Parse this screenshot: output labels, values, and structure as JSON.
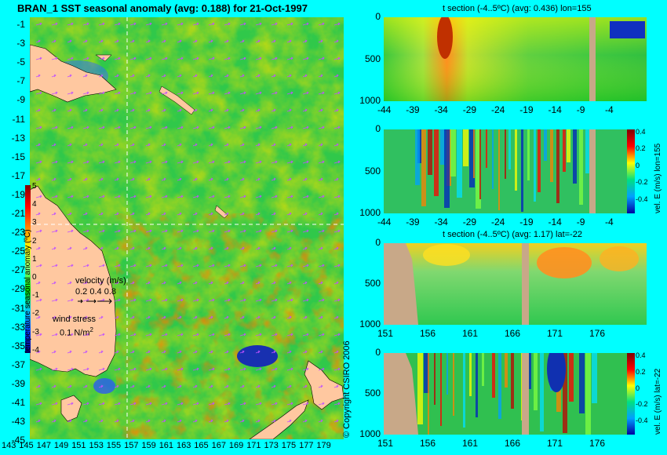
{
  "map": {
    "title": "BRAN_1 SST seasonal anomaly (avg: 0.188) for 21-Oct-1997",
    "lat_labels": [
      "-1",
      "-3",
      "-5",
      "-7",
      "-9",
      "-11",
      "-13",
      "-15",
      "-17",
      "-19",
      "-21",
      "-23",
      "-25",
      "-27",
      "-29",
      "-31",
      "-33",
      "-35",
      "-37",
      "-39",
      "-41",
      "-43",
      "-45"
    ],
    "lon_labels": [
      "143",
      "145",
      "147",
      "149",
      "151",
      "153",
      "155",
      "157",
      "159",
      "161",
      "163",
      "165",
      "167",
      "169",
      "171",
      "173",
      "175",
      "177",
      "179"
    ],
    "colorbar_ticks": [
      "5",
      "4",
      "3",
      "2",
      "1",
      "0",
      "-1",
      "-2",
      "-3",
      "-4"
    ],
    "colorbar_label": "temperature seasonal anomaly (ºC)",
    "velocity_label": "velocity (m/s)",
    "velocity_values": "0.2 0.4 0.8",
    "wind_label": "wind stress",
    "wind_value": "0.1 N/m",
    "wind_exp": "2",
    "copyright": "© Copyright CSIRO 2006"
  },
  "panels": [
    {
      "title": "t section (-4..5ºC) (avg: 0.436) lon=155",
      "y_ticks": [
        "0",
        "500",
        "1000"
      ],
      "x_ticks": [
        "-44",
        "-39",
        "-34",
        "-29",
        "-24",
        "-19",
        "-14",
        "-9",
        "-4"
      ]
    },
    {
      "title": "",
      "y_ticks": [
        "0",
        "500",
        "1000"
      ],
      "x_ticks": [
        "-44",
        "-39",
        "-34",
        "-29",
        "-24",
        "-19",
        "-14",
        "-9",
        "-4"
      ],
      "colorbar_ticks": [
        "0.4",
        "0.2",
        "0",
        "-0.2",
        "-0.4"
      ],
      "side_label": "vel. E (m/s) lon=155"
    },
    {
      "title": "t section (-4..5ºC) (avg: 1.17) lat=-22",
      "y_ticks": [
        "0",
        "500",
        "1000"
      ],
      "x_ticks": [
        "151",
        "156",
        "161",
        "166",
        "171",
        "176"
      ]
    },
    {
      "title": "",
      "y_ticks": [
        "0",
        "500",
        "1000"
      ],
      "x_ticks": [
        "151",
        "156",
        "161",
        "166",
        "171",
        "176"
      ],
      "colorbar_ticks": [
        "0.4",
        "0.2",
        "0",
        "-0.2",
        "-0.4"
      ],
      "side_label": "vel. E (m/s) lat=-22"
    }
  ],
  "chart_data": [
    {
      "type": "heatmap",
      "title": "BRAN_1 SST seasonal anomaly (avg: 0.188) for 21-Oct-1997",
      "xlim": [
        142,
        180
      ],
      "ylim": [
        -45,
        0
      ],
      "colorbar_range": [
        -4,
        5
      ],
      "colors": {
        "land": "#ffc8a0",
        "ocean_base": "#33cc33"
      }
    },
    {
      "type": "heatmap",
      "title": "t section (-4..5ºC) (avg: 0.436) lon=155",
      "x_range": [
        -45,
        -1
      ],
      "y_range": [
        0,
        1000
      ],
      "y_reversed": true
    },
    {
      "type": "heatmap",
      "title": "",
      "x_range": [
        -45,
        -1
      ],
      "y_range": [
        0,
        1000
      ],
      "colorbar_range": [
        -0.4,
        0.4
      ]
    },
    {
      "type": "heatmap",
      "title": "t section (-4..5ºC) (avg: 1.17) lat=-22",
      "x_range": [
        149,
        180
      ],
      "y_range": [
        0,
        1000
      ],
      "y_reversed": true
    },
    {
      "type": "heatmap",
      "title": "",
      "x_range": [
        149,
        180
      ],
      "y_range": [
        0,
        1000
      ],
      "colorbar_range": [
        -0.4,
        0.4
      ]
    }
  ]
}
